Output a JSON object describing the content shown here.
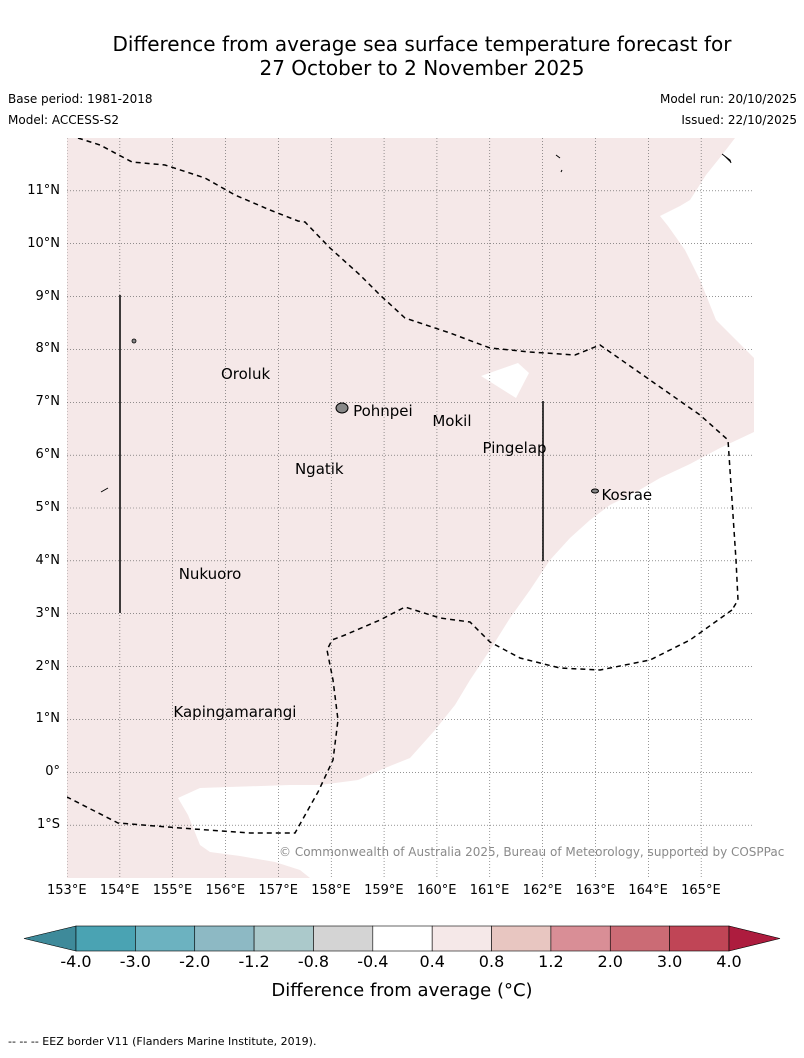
{
  "title_line1": "Difference from average sea surface temperature forecast for",
  "title_line2": "27 October to 2 November 2025",
  "meta": {
    "base_period": "Base period: 1981-2018",
    "model": "Model: ACCESS-S2",
    "model_run": "Model run: 20/10/2025",
    "issued": "Issued: 22/10/2025"
  },
  "copyright": "© Commonwealth of Australia 2025, Bureau of Meteorology, supported by COSPPac",
  "footnote": "--  --  -- EEZ border V11 (Flanders Marine Institute, 2019).",
  "map": {
    "lon_range": [
      153.0,
      166.0
    ],
    "lat_range": [
      -2.0,
      12.0
    ],
    "lat_ticks": [
      {
        "value": 11,
        "label": "11°N"
      },
      {
        "value": 10,
        "label": "10°N"
      },
      {
        "value": 9,
        "label": "9°N"
      },
      {
        "value": 8,
        "label": "8°N"
      },
      {
        "value": 7,
        "label": "7°N"
      },
      {
        "value": 6,
        "label": "6°N"
      },
      {
        "value": 5,
        "label": "5°N"
      },
      {
        "value": 4,
        "label": "4°N"
      },
      {
        "value": 3,
        "label": "3°N"
      },
      {
        "value": 2,
        "label": "2°N"
      },
      {
        "value": 1,
        "label": "1°N"
      },
      {
        "value": 0,
        "label": "0°"
      },
      {
        "value": -1,
        "label": "1°S"
      }
    ],
    "lon_ticks": [
      {
        "value": 153,
        "label": "153°E"
      },
      {
        "value": 154,
        "label": "154°E"
      },
      {
        "value": 155,
        "label": "155°E"
      },
      {
        "value": 156,
        "label": "156°E"
      },
      {
        "value": 157,
        "label": "157°E"
      },
      {
        "value": 158,
        "label": "158°E"
      },
      {
        "value": 159,
        "label": "159°E"
      },
      {
        "value": 160,
        "label": "160°E"
      },
      {
        "value": 161,
        "label": "161°E"
      },
      {
        "value": 162,
        "label": "162°E"
      },
      {
        "value": 163,
        "label": "163°E"
      },
      {
        "value": 164,
        "label": "164°E"
      },
      {
        "value": 165,
        "label": "165°E"
      }
    ],
    "places": [
      {
        "name": "Oroluk",
        "lon": 155.8,
        "lat": 7.6
      },
      {
        "name": "Pohnpei",
        "lon": 158.3,
        "lat": 6.9
      },
      {
        "name": "Mokil",
        "lon": 159.8,
        "lat": 6.7
      },
      {
        "name": "Pingelap",
        "lon": 160.75,
        "lat": 6.2
      },
      {
        "name": "Ngatik",
        "lon": 157.2,
        "lat": 5.8
      },
      {
        "name": "Kosrae",
        "lon": 163.0,
        "lat": 5.3
      },
      {
        "name": "Nukuoro",
        "lon": 155.0,
        "lat": 3.8
      },
      {
        "name": "Kapingamarangi",
        "lon": 154.9,
        "lat": 1.2
      }
    ],
    "anomaly_fill_color": "#f5e8e8",
    "ocean_color": "#ffffff"
  },
  "colorbar": {
    "title": "Difference from average (°C)",
    "tick_labels": [
      "-4.0",
      "-3.0",
      "-2.0",
      "-1.2",
      "-0.8",
      "-0.4",
      "0.4",
      "0.8",
      "1.2",
      "2.0",
      "3.0",
      "4.0"
    ],
    "colors": [
      "#3e8a9a",
      "#4aa3b3",
      "#6cb2c0",
      "#8db9c4",
      "#abc9cb",
      "#d4d4d4",
      "#ffffff",
      "#f5e8e8",
      "#e8c6c1",
      "#d98e96",
      "#cb6b75",
      "#c04556",
      "#ad1c3e"
    ]
  }
}
